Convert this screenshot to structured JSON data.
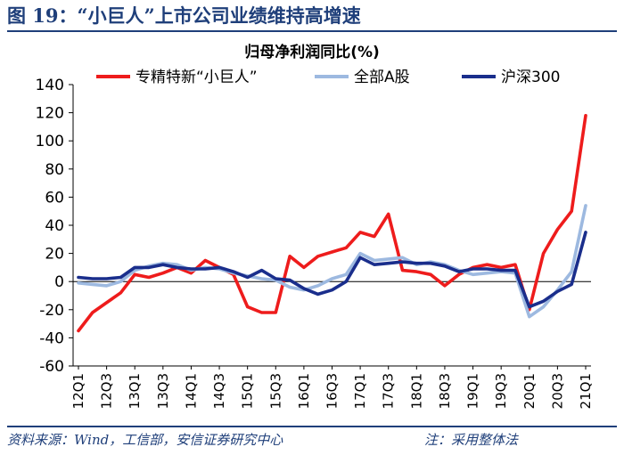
{
  "header": {
    "figure_title": "图 19：“小巨人”上市公司业绩维持高增速"
  },
  "footer": {
    "source": "资料来源：Wind，工信部，安信证券研究中心",
    "note": "注：采用整体法"
  },
  "colors": {
    "series_red": "#ee1c1c",
    "series_lightblue": "#9db9e0",
    "series_navy": "#1a2e8c",
    "brand": "#1f3f7a"
  },
  "chart_data": {
    "type": "line",
    "title": "归母净利润同比(%)",
    "xlabel": "",
    "ylabel": "",
    "ylim": [
      -60,
      140
    ],
    "yticks": [
      140,
      120,
      100,
      80,
      60,
      40,
      20,
      0,
      -20,
      -40,
      -60
    ],
    "x": [
      "12Q1",
      "12Q2",
      "12Q3",
      "12Q4",
      "13Q1",
      "13Q2",
      "13Q3",
      "13Q4",
      "14Q1",
      "14Q2",
      "14Q3",
      "14Q4",
      "15Q1",
      "15Q2",
      "15Q3",
      "15Q4",
      "16Q1",
      "16Q2",
      "16Q3",
      "16Q4",
      "17Q1",
      "17Q2",
      "17Q3",
      "17Q4",
      "18Q1",
      "18Q2",
      "18Q3",
      "18Q4",
      "19Q1",
      "19Q2",
      "19Q3",
      "19Q4",
      "20Q1",
      "20Q2",
      "20Q3",
      "20Q4",
      "21Q1"
    ],
    "tick_labels": [
      "12Q1",
      "12Q3",
      "13Q1",
      "13Q3",
      "14Q1",
      "14Q3",
      "15Q1",
      "15Q3",
      "16Q1",
      "16Q3",
      "17Q1",
      "17Q3",
      "18Q1",
      "18Q3",
      "19Q1",
      "19Q3",
      "20Q1",
      "20Q3",
      "21Q1"
    ],
    "legend_position": "top",
    "series": [
      {
        "name": "专精特新“小巨人”",
        "color": "#ee1c1c",
        "values": [
          -35,
          -22,
          -15,
          -8,
          5,
          3,
          6,
          10,
          6,
          15,
          10,
          5,
          -18,
          -22,
          -22,
          18,
          10,
          18,
          21,
          24,
          35,
          32,
          48,
          8,
          7,
          5,
          -3,
          5,
          10,
          12,
          10,
          12,
          -20,
          20,
          37,
          50,
          118
        ]
      },
      {
        "name": "全部A股",
        "color": "#9db9e0",
        "values": [
          -1,
          -2,
          -3,
          0,
          8,
          11,
          13,
          12,
          8,
          10,
          9,
          6,
          4,
          2,
          1,
          -4,
          -6,
          -3,
          2,
          5,
          20,
          15,
          16,
          17,
          12,
          14,
          12,
          8,
          5,
          6,
          7,
          6,
          -25,
          -18,
          -6,
          7,
          54
        ]
      },
      {
        "name": "沪深300",
        "color": "#1a2e8c",
        "values": [
          3,
          2,
          2,
          3,
          10,
          10,
          12,
          10,
          9,
          9,
          10,
          7,
          3,
          8,
          2,
          1,
          -5,
          -9,
          -6,
          0,
          17,
          12,
          13,
          14,
          13,
          13,
          11,
          7,
          9,
          9,
          8,
          8,
          -18,
          -14,
          -7,
          -2,
          35
        ]
      }
    ]
  }
}
